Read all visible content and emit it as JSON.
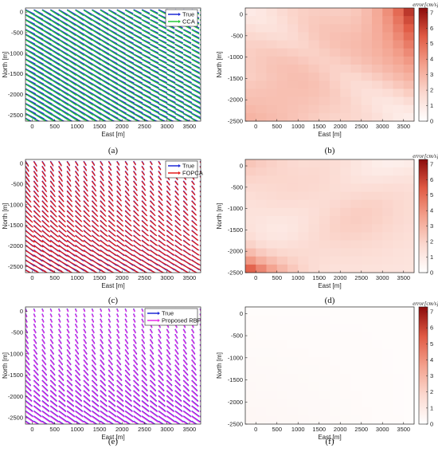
{
  "chart_data": [
    {
      "type": "quiver",
      "panel_label": "(a)",
      "xlabel": "East [m]",
      "ylabel": "North [m]",
      "xticks": [
        0,
        500,
        1000,
        1500,
        2000,
        2500,
        3000,
        3500
      ],
      "yticks": [
        0,
        -500,
        -1000,
        -1500,
        -2000,
        -2500
      ],
      "xlim": [
        -150,
        3750
      ],
      "ylim": [
        -2650,
        100
      ],
      "grid": false,
      "legend_position": "top-right",
      "series": [
        {
          "name": "True",
          "color": "#1f2bd6"
        },
        {
          "name": "CCA",
          "color": "#27c93a"
        }
      ]
    },
    {
      "type": "heatmap",
      "panel_label": "(b)",
      "xlabel": "East [m]",
      "ylabel": "North [m]",
      "xticks": [
        0,
        500,
        1000,
        1500,
        2000,
        2500,
        3000,
        3500
      ],
      "yticks": [
        0,
        -500,
        -1000,
        -1500,
        -2000,
        -2500
      ],
      "colorbar_label": "error[cm/s]",
      "colorbar_ticks": [
        0,
        1,
        2,
        3,
        4,
        5,
        6,
        7
      ],
      "vmin": 0,
      "vmax": 7.3,
      "pattern": "cca"
    },
    {
      "type": "quiver",
      "panel_label": "(c)",
      "xlabel": "East [m]",
      "ylabel": "North [m]",
      "xticks": [
        0,
        500,
        1000,
        1500,
        2000,
        2500,
        3000,
        3500
      ],
      "yticks": [
        0,
        -500,
        -1000,
        -1500,
        -2000,
        -2500
      ],
      "xlim": [
        -150,
        3750
      ],
      "ylim": [
        -2650,
        100
      ],
      "grid": false,
      "legend_position": "top-right",
      "series": [
        {
          "name": "True",
          "color": "#1f2bd6"
        },
        {
          "name": "FOPCA",
          "color": "#e21b1b"
        }
      ]
    },
    {
      "type": "heatmap",
      "panel_label": "(d)",
      "xlabel": "East [m]",
      "ylabel": "North [m]",
      "xticks": [
        0,
        500,
        1000,
        1500,
        2000,
        2500,
        3000,
        3500
      ],
      "yticks": [
        0,
        -500,
        -1000,
        -1500,
        -2000,
        -2500
      ],
      "colorbar_label": "error[cm/s]",
      "colorbar_ticks": [
        0,
        1,
        2,
        3,
        4,
        5,
        6,
        7
      ],
      "vmin": 0,
      "vmax": 7.3,
      "pattern": "fopca"
    },
    {
      "type": "quiver",
      "panel_label": "(e)",
      "xlabel": "East [m]",
      "ylabel": "North [m]",
      "xticks": [
        0,
        500,
        1000,
        1500,
        2000,
        2500,
        3000,
        3500
      ],
      "yticks": [
        0,
        -500,
        -1000,
        -1500,
        -2000,
        -2500
      ],
      "xlim": [
        -150,
        3750
      ],
      "ylim": [
        -2650,
        100
      ],
      "grid": false,
      "legend_position": "top-right",
      "series": [
        {
          "name": "True",
          "color": "#1f2bd6"
        },
        {
          "name": "Proposed RBF",
          "color": "#e62ee6"
        }
      ]
    },
    {
      "type": "heatmap",
      "panel_label": "(f)",
      "xlabel": "East [m]",
      "ylabel": "North [m]",
      "xticks": [
        0,
        500,
        1000,
        1500,
        2000,
        2500,
        3000,
        3500
      ],
      "yticks": [
        0,
        -500,
        -1000,
        -1500,
        -2000,
        -2500
      ],
      "colorbar_label": "error[cm/s]",
      "colorbar_ticks": [
        0,
        1,
        2,
        3,
        4,
        5,
        6,
        7
      ],
      "vmin": 0,
      "vmax": 7.3,
      "pattern": "rbf"
    }
  ]
}
